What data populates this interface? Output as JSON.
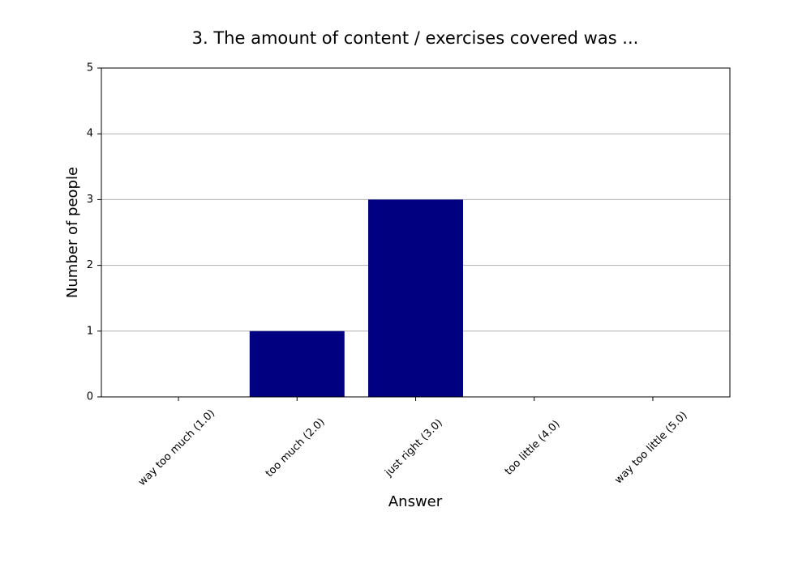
{
  "chart_data": {
    "type": "bar",
    "title": "3. The amount of content / exercises covered was ...",
    "xlabel": "Answer",
    "ylabel": "Number of people",
    "categories": [
      "way too much (1.0)",
      "too much (2.0)",
      "just right (3.0)",
      "too little (4.0)",
      "way too little (5.0)"
    ],
    "values": [
      0,
      1,
      3,
      0,
      0
    ],
    "color": "#000080",
    "ylim": [
      0,
      5
    ],
    "yticks": [
      0,
      1,
      2,
      3,
      4,
      5
    ],
    "grid": true
  }
}
